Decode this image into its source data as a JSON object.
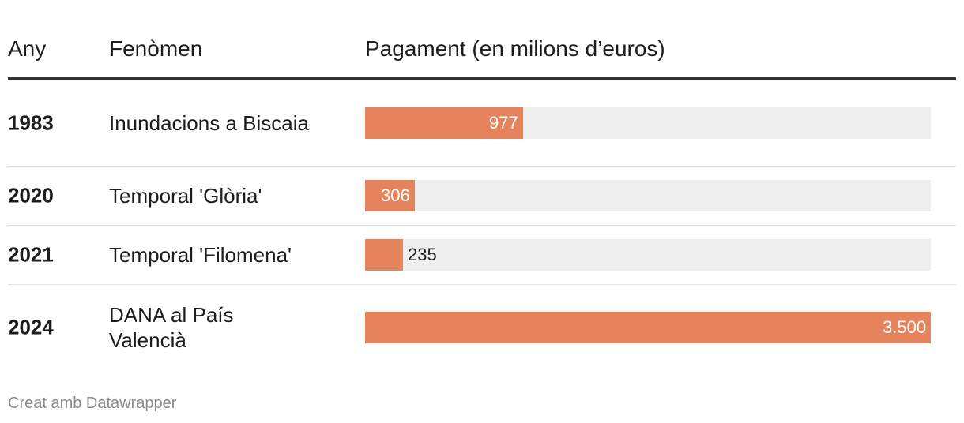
{
  "header": {
    "year": "Any",
    "event": "Fenòmen",
    "payment": "Pagament (en milions d’euros)"
  },
  "chart_data": {
    "type": "bar",
    "orientation": "horizontal",
    "categories": [
      "1983",
      "2020",
      "2021",
      "2024"
    ],
    "labels": [
      "Inundacions a Biscaia",
      "Temporal 'Glòria'",
      "Temporal 'Filomena'",
      "DANA al País Valencià"
    ],
    "values": [
      977,
      306,
      235,
      3500
    ],
    "value_labels": [
      "977",
      "306",
      "235",
      "3.500"
    ],
    "xlim": [
      0,
      3500
    ],
    "colors": {
      "bar": "#e5845c",
      "track": "#efefef"
    }
  },
  "rows": [
    {
      "year": "1983",
      "event": "Inundacions a Biscaia",
      "value": 977,
      "value_label": "977"
    },
    {
      "year": "2020",
      "event": "Temporal 'Glòria'",
      "value": 306,
      "value_label": "306"
    },
    {
      "year": "2021",
      "event": "Temporal 'Filomena'",
      "value": 235,
      "value_label": "235"
    },
    {
      "year": "2024",
      "event": "DANA al País Valencià",
      "value": 3500,
      "value_label": "3.500"
    }
  ],
  "footer": {
    "credit": "Creat amb Datawrapper"
  }
}
